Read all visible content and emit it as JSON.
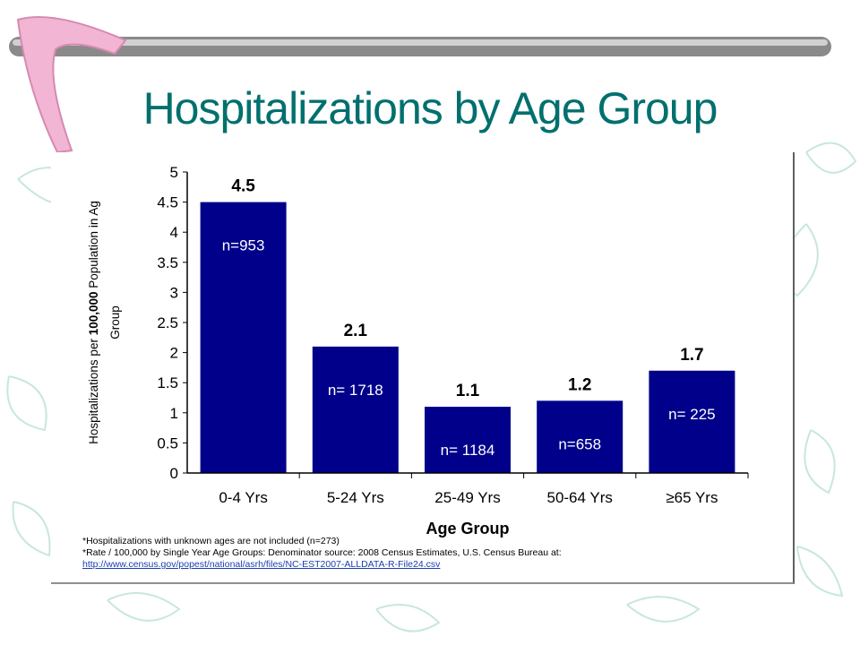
{
  "slide": {
    "title": "Hospitalizations by Age Group"
  },
  "colors": {
    "title": "#00706e",
    "bar": "#00008b",
    "background_accent": "#c8e6e0"
  },
  "chart_data": {
    "type": "bar",
    "title": "",
    "xlabel": "Age Group",
    "ylabel_parts": [
      "Hospitalizations per ",
      "100,000",
      " Population in Ag",
      "Group"
    ],
    "ylim": [
      0,
      5
    ],
    "yticks": [
      "0",
      "0.5",
      "1",
      "1.5",
      "2",
      "2.5",
      "3",
      "3.5",
      "4",
      "4.5",
      "5"
    ],
    "categories": [
      "0-4 Yrs",
      "5-24 Yrs",
      "25-49 Yrs",
      "50-64 Yrs",
      "≥65 Yrs"
    ],
    "values": [
      4.5,
      2.1,
      1.1,
      1.2,
      1.7
    ],
    "value_labels": [
      "4.5",
      "2.1",
      "1.1",
      "1.2",
      "1.7"
    ],
    "n_labels": [
      "n=953",
      "n= 1718",
      "n= 1184",
      "n=658",
      "n= 225"
    ],
    "grid": false,
    "legend": "none"
  },
  "footnotes": {
    "line1": "*Hospitalizations with unknown ages are not included (n=273)",
    "line2": "*Rate / 100,000 by Single Year Age Groups: Denominator source: 2008 Census Estimates, U.S. Census Bureau at:",
    "link": "http://www.census.gov/popest/national/asrh/files/NC-EST2007-ALLDATA-R-File24.csv"
  }
}
